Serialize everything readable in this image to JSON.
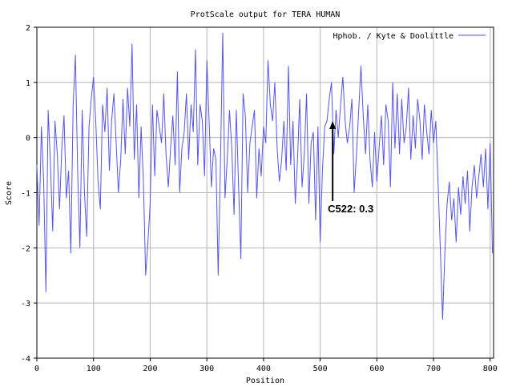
{
  "chart_data": {
    "type": "line",
    "title": "ProtScale output for TERA HUMAN",
    "xlabel": "Position",
    "ylabel": "Score",
    "xlim": [
      0,
      806
    ],
    "ylim": [
      -4,
      2
    ],
    "x_ticks": [
      0,
      100,
      200,
      300,
      400,
      500,
      600,
      700,
      800
    ],
    "x_tick_labels": [
      "0",
      "100",
      "200",
      "300",
      "400",
      "500",
      "600",
      "700",
      "800"
    ],
    "y_ticks": [
      -4,
      -3,
      -2,
      -1,
      0,
      1,
      2
    ],
    "y_tick_labels": [
      "-4",
      "-3",
      "-2",
      "-1",
      "0",
      "1",
      "2"
    ],
    "grid": true,
    "legend_position": "top-right",
    "series": [
      {
        "name": "Hphob. / Kyte & Doolittle",
        "color": "#5555ee",
        "x": [
          0,
          4,
          8,
          12,
          16,
          20,
          24,
          28,
          32,
          36,
          40,
          44,
          48,
          52,
          56,
          60,
          64,
          68,
          72,
          76,
          80,
          84,
          88,
          92,
          96,
          100,
          104,
          108,
          112,
          116,
          120,
          124,
          128,
          132,
          136,
          140,
          144,
          148,
          152,
          156,
          160,
          164,
          168,
          172,
          176,
          180,
          184,
          188,
          192,
          196,
          200,
          204,
          208,
          212,
          216,
          220,
          224,
          228,
          232,
          236,
          240,
          244,
          248,
          252,
          256,
          260,
          264,
          268,
          272,
          276,
          280,
          284,
          288,
          292,
          296,
          300,
          304,
          308,
          312,
          316,
          320,
          324,
          328,
          332,
          336,
          340,
          344,
          348,
          352,
          356,
          360,
          364,
          368,
          372,
          376,
          380,
          384,
          388,
          392,
          396,
          400,
          404,
          408,
          412,
          416,
          420,
          424,
          428,
          432,
          436,
          440,
          444,
          448,
          452,
          456,
          460,
          464,
          468,
          472,
          476,
          480,
          484,
          488,
          492,
          496,
          500,
          504,
          508,
          512,
          516,
          520,
          524,
          528,
          532,
          536,
          540,
          544,
          548,
          552,
          556,
          560,
          564,
          568,
          572,
          576,
          580,
          584,
          588,
          592,
          596,
          600,
          604,
          608,
          612,
          616,
          620,
          624,
          628,
          632,
          636,
          640,
          644,
          648,
          652,
          656,
          660,
          664,
          668,
          672,
          676,
          680,
          684,
          688,
          692,
          696,
          700,
          704,
          708,
          712,
          716,
          720,
          724,
          728,
          732,
          736,
          740,
          744,
          748,
          752,
          756,
          760,
          764,
          768,
          772,
          776,
          780,
          784,
          788,
          792,
          796,
          800,
          804
        ],
        "values": [
          -0.5,
          -1.6,
          0.2,
          -0.8,
          -2.8,
          0.5,
          -0.5,
          -1.7,
          0.3,
          -0.3,
          -1.3,
          -0.2,
          0.4,
          -1.1,
          -0.6,
          -2.1,
          0.6,
          1.5,
          -0.6,
          -2.0,
          0.5,
          -1.0,
          -1.8,
          0.2,
          0.7,
          1.1,
          0.3,
          -0.8,
          -1.3,
          0.6,
          0.1,
          0.9,
          -0.6,
          0.3,
          0.8,
          -0.1,
          -1.0,
          -0.4,
          0.7,
          -0.3,
          0.9,
          0.2,
          1.7,
          -0.4,
          0.6,
          -1.1,
          0.2,
          -0.8,
          -2.5,
          -1.9,
          -1.2,
          0.6,
          -0.7,
          0.5,
          0.2,
          -0.1,
          0.8,
          -0.3,
          -0.9,
          -0.2,
          0.4,
          -0.5,
          1.2,
          -1.0,
          -0.2,
          0.1,
          0.8,
          -0.4,
          0.6,
          0.1,
          1.6,
          -0.5,
          0.6,
          0.3,
          -0.7,
          1.4,
          0.3,
          -0.9,
          -0.2,
          -0.4,
          -2.5,
          -0.5,
          1.9,
          -1.1,
          -0.4,
          0.5,
          -0.2,
          -1.4,
          0.5,
          -0.9,
          -2.2,
          0.8,
          0.4,
          -1.0,
          -0.1,
          0.2,
          0.5,
          -1.1,
          -0.2,
          -0.7,
          0.2,
          -0.1,
          1.4,
          0.6,
          0.3,
          1.0,
          -0.2,
          -0.8,
          -0.4,
          0.3,
          -0.6,
          1.3,
          -0.5,
          0.3,
          -1.2,
          -0.4,
          0.7,
          -0.9,
          -0.3,
          0.8,
          -1.2,
          -0.1,
          0.1,
          -1.5,
          0.2,
          -1.9,
          -0.6,
          0.2,
          0.3,
          0.7,
          1.0,
          -0.3,
          0.5,
          0.0,
          0.6,
          1.1,
          0.3,
          -0.1,
          0.2,
          0.7,
          -1.0,
          -0.3,
          0.5,
          1.3,
          0.4,
          -0.3,
          0.6,
          -0.4,
          -0.9,
          0.1,
          -0.8,
          -0.2,
          0.4,
          -0.5,
          0.6,
          0.3,
          -0.9,
          1.0,
          -0.2,
          0.8,
          -0.3,
          0.7,
          -0.1,
          0.2,
          0.9,
          -0.4,
          0.4,
          -0.2,
          0.7,
          0.3,
          -0.4,
          0.6,
          0.1,
          -0.3,
          0.5,
          -0.1,
          0.3,
          -0.8,
          -2.0,
          -3.3,
          -2.1,
          -1.2,
          -0.8,
          -1.5,
          -1.1,
          -1.9,
          -0.9,
          -1.4,
          -0.7,
          -1.2,
          -0.6,
          -1.7,
          -0.9,
          -0.5,
          -1.1,
          -0.7,
          -0.3,
          -0.9,
          -0.2,
          -1.3,
          -0.1,
          -2.1
        ]
      }
    ],
    "annotation": {
      "label": "C522: 0.3",
      "x": 522,
      "y": 0.3
    }
  }
}
